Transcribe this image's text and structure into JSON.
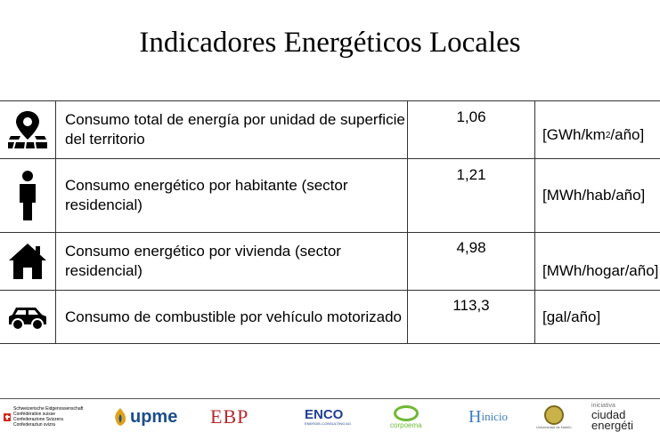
{
  "title": "Indicadores Energéticos Locales",
  "rows": [
    {
      "icon": "map-pin-icon",
      "description": "Consumo total de energía por unidad de superficie del territorio",
      "value": "1,06",
      "unit_prefix": "[GWh/km",
      "unit_sup": "2",
      "unit_suffix": "/año]"
    },
    {
      "icon": "person-icon",
      "description": "Consumo energético por habitante (sector residencial)",
      "value": "1,21",
      "unit": "[MWh/hab/año]"
    },
    {
      "icon": "house-icon",
      "description": "Consumo energético por vivienda (sector residencial)",
      "value": "4,98",
      "unit": "[MWh/hogar/año]"
    },
    {
      "icon": "car-icon",
      "description": "Consumo de combustible por vehículo motorizado",
      "value": "113,3",
      "unit": "[gal/año]"
    }
  ],
  "footer": {
    "swiss_lines": [
      "Schweizerische Eidgenossenschaft",
      "Confédération suisse",
      "Confederazione Svizzera",
      "Confederaziun svizra"
    ],
    "upme": "upme",
    "ebp": "EBP",
    "enco": "ENCO",
    "enco_sub": "ENERGIE-CONSULTING AG",
    "corpoema": "corpoema",
    "hinicio_h": "H",
    "hinicio": "inicio",
    "unimario": "Universidad de Nariño",
    "ciudad_l1": "iniciativa",
    "ciudad_l2": "ciudad",
    "ciudad_l3": "energéti"
  }
}
